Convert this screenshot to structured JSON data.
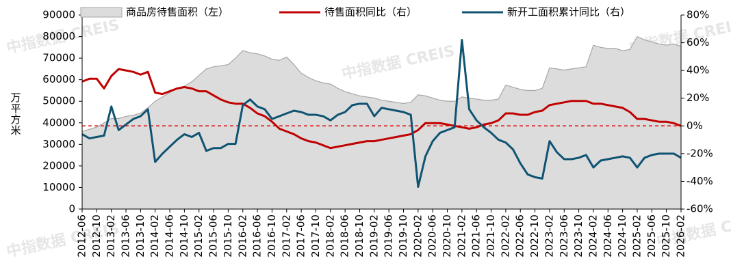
{
  "chart_data": {
    "type": "line",
    "y_label": "万平方米",
    "watermark": "中指数据 CREIS",
    "categories": [
      "2012-06",
      null,
      "2012-10",
      null,
      "2013-02",
      null,
      "2013-06",
      null,
      "2013-10",
      null,
      "2014-02",
      null,
      "2014-06",
      null,
      "2014-10",
      null,
      "2015-02",
      null,
      "2015-06",
      null,
      "2015-10",
      null,
      "2016-02",
      null,
      "2016-06",
      null,
      "2016-10",
      null,
      "2017-02",
      null,
      "2017-06",
      null,
      "2017-10",
      null,
      "2018-02",
      null,
      "2018-06",
      null,
      "2018-10",
      null,
      "2019-02",
      null,
      "2019-06",
      null,
      "2019-10",
      null,
      "2020-02",
      null,
      "2020-06",
      null,
      "2020-10",
      null,
      "2021-02",
      null,
      "2021-06",
      null,
      "2021-10",
      null,
      "2022-02",
      null,
      "2022-06",
      null,
      "2022-10",
      null,
      "2023-02",
      null,
      "2023-06",
      null,
      "2023-10",
      null,
      "2024-02",
      null,
      "2024-06",
      null,
      "2024-10",
      null,
      "2025-02",
      null,
      "2025-06",
      null,
      "2025-10",
      null,
      "2026-02"
    ],
    "series": [
      {
        "name": "商品房待售面积（左）",
        "type": "area",
        "color": "#dcdcdc",
        "values": [
          36000,
          37000,
          38000,
          40000,
          42000,
          42000,
          43000,
          43500,
          44500,
          47000,
          50000,
          52000,
          54000,
          56000,
          57000,
          59000,
          62000,
          65000,
          66000,
          66500,
          67000,
          70000,
          73500,
          72500,
          72000,
          71000,
          69500,
          69000,
          70500,
          67000,
          63000,
          61000,
          59500,
          58500,
          58000,
          56000,
          54500,
          53500,
          52500,
          52000,
          51500,
          50500,
          50000,
          49500,
          49000,
          49500,
          53000,
          52500,
          51500,
          50500,
          50000,
          50000,
          52000,
          51500,
          51000,
          50500,
          50500,
          51000,
          57500,
          56500,
          55500,
          55000,
          55000,
          56000,
          65500,
          65000,
          64500,
          65000,
          65500,
          66000,
          76000,
          75000,
          74500,
          74500,
          73500,
          74000,
          80000,
          78500,
          77500,
          76500,
          76000,
          76500,
          75500
        ]
      },
      {
        "name": "待售面积同比（右）",
        "color": "#c00000",
        "axis": "y2",
        "values": [
          32,
          34,
          34,
          27,
          36,
          41,
          40,
          39,
          37,
          39,
          24,
          23,
          25,
          27,
          28,
          27,
          25,
          25,
          22,
          19,
          17,
          16,
          16,
          13,
          9,
          7,
          3,
          -2,
          -4,
          -6,
          -9,
          -11,
          -12,
          -14,
          -16,
          -15,
          -14,
          -13,
          -12,
          -11,
          -11,
          -10,
          -9,
          -8,
          -7,
          -6,
          -3,
          2,
          2,
          2,
          1,
          0,
          -1,
          -2,
          -1,
          1,
          2,
          4,
          9,
          9,
          8,
          8,
          10,
          11,
          15,
          16,
          17,
          18,
          18,
          18,
          16,
          16,
          15,
          14,
          13,
          10,
          5,
          5,
          4,
          3,
          3,
          2,
          0
        ]
      },
      {
        "name": "新开工面积累计同比（右）",
        "color": "#0f5372",
        "axis": "y2",
        "values": [
          -6,
          -9,
          -8,
          -7,
          14,
          -3,
          1,
          5,
          7,
          12,
          -26,
          -20,
          -15,
          -10,
          -6,
          -8,
          -5,
          -18,
          -16,
          -16,
          -13,
          -13,
          15,
          19,
          14,
          12,
          5,
          7,
          9,
          11,
          10,
          8,
          8,
          7,
          4,
          8,
          10,
          15,
          16,
          16,
          7,
          13,
          12,
          11,
          10,
          8,
          -44,
          -22,
          -11,
          -5,
          -3,
          -1,
          62,
          12,
          4,
          -1,
          -5,
          -10,
          -12,
          -17,
          -27,
          -35,
          -37,
          -38,
          -11,
          -19,
          -24,
          -24,
          -23,
          -21,
          -30,
          -25,
          -24,
          -23,
          -22,
          -23,
          -30,
          -23,
          -21,
          -20,
          -20,
          -20,
          -23
        ]
      }
    ],
    "ylim": [
      0,
      90000
    ],
    "yticks": [
      0,
      10000,
      20000,
      30000,
      40000,
      50000,
      60000,
      70000,
      80000,
      90000
    ],
    "y2lim": [
      -60,
      80
    ],
    "y2ticks": [
      {
        "value": -60,
        "label": "-60%"
      },
      {
        "value": -40,
        "label": "-40%"
      },
      {
        "value": -20,
        "label": "-20%"
      },
      {
        "value": 0,
        "label": "0%"
      },
      {
        "value": 20,
        "label": "20%"
      },
      {
        "value": 40,
        "label": "40%"
      },
      {
        "value": 60,
        "label": "60%"
      },
      {
        "value": 80,
        "label": "80%"
      }
    ],
    "zero_line_color": "#e00000",
    "legend": "top"
  }
}
